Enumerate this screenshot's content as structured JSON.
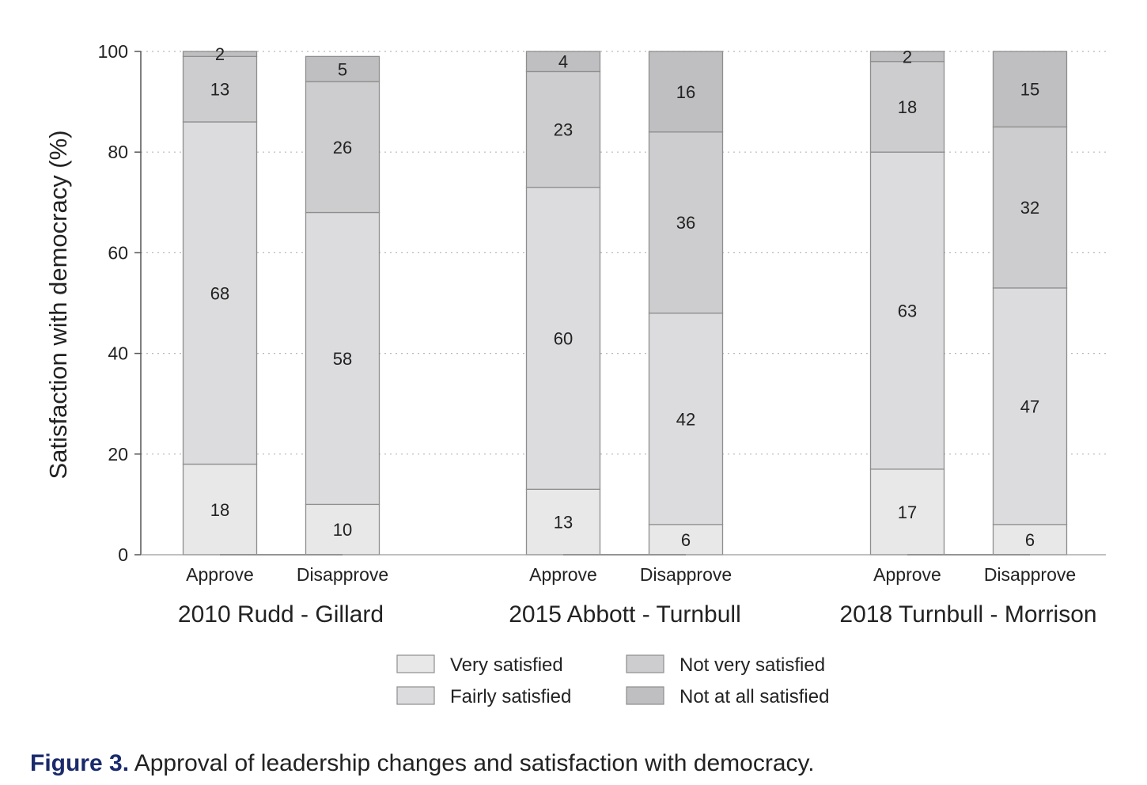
{
  "caption": {
    "label": "Figure 3.",
    "text": " Approval of leadership changes and satisfaction with democracy."
  },
  "chart_data": {
    "type": "bar",
    "stacked": true,
    "ylabel": "Satisfaction with democracy (%)",
    "ylim": [
      0,
      100
    ],
    "yticks": [
      0,
      20,
      40,
      60,
      80,
      100
    ],
    "grid": "horizontal dotted",
    "groups": [
      {
        "name": "2010 Rudd - Gillard",
        "categories": [
          "Approve",
          "Disapprove"
        ]
      },
      {
        "name": "2015 Abbott - Turnbull",
        "categories": [
          "Approve",
          "Disapprove"
        ]
      },
      {
        "name": "2018 Turnbull - Morrison",
        "categories": [
          "Approve",
          "Disapprove"
        ]
      }
    ],
    "bars": [
      {
        "group": "2010 Rudd - Gillard",
        "category": "Approve",
        "values": [
          18,
          68,
          13,
          2
        ]
      },
      {
        "group": "2010 Rudd - Gillard",
        "category": "Disapprove",
        "values": [
          10,
          58,
          26,
          5
        ]
      },
      {
        "group": "2015 Abbott - Turnbull",
        "category": "Approve",
        "values": [
          13,
          60,
          23,
          4
        ]
      },
      {
        "group": "2015 Abbott - Turnbull",
        "category": "Disapprove",
        "values": [
          6,
          42,
          36,
          16
        ]
      },
      {
        "group": "2018 Turnbull - Morrison",
        "category": "Approve",
        "values": [
          17,
          63,
          18,
          2
        ]
      },
      {
        "group": "2018 Turnbull - Morrison",
        "category": "Disapprove",
        "values": [
          6,
          47,
          32,
          15
        ]
      }
    ],
    "series": [
      {
        "name": "Very satisfied",
        "color": "#e8e8e8"
      },
      {
        "name": "Fairly satisfied",
        "color": "#dcdcde"
      },
      {
        "name": "Not very satisfied",
        "color": "#cdcdcf"
      },
      {
        "name": "Not at all satisfied",
        "color": "#bfbfc1"
      }
    ],
    "legend_position": "bottom-center"
  }
}
